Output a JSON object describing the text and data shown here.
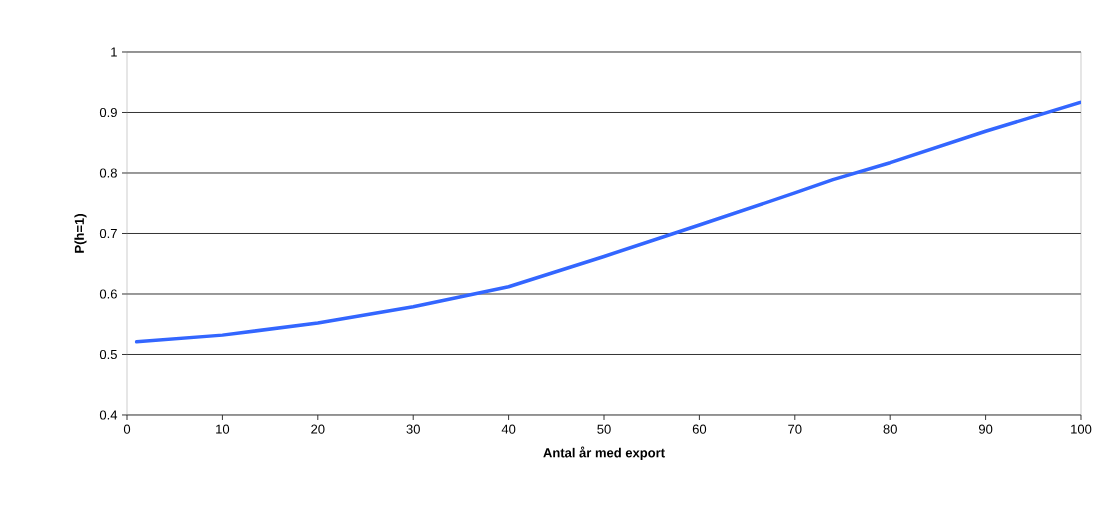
{
  "chart_data": {
    "type": "line",
    "xlabel": "Antal år med export",
    "ylabel": "P(h=1)",
    "x": [
      1,
      10,
      20,
      30,
      40,
      50,
      60,
      70,
      74,
      80,
      90,
      100
    ],
    "series": [
      {
        "color": "#3366ff",
        "values": [
          0.521,
          0.532,
          0.552,
          0.579,
          0.612,
          0.662,
          0.714,
          0.767,
          0.789,
          0.817,
          0.869,
          0.917
        ]
      }
    ],
    "xlim": [
      0,
      100
    ],
    "xticks": [
      0,
      10,
      20,
      30,
      40,
      50,
      60,
      70,
      80,
      90,
      100
    ],
    "ylim": [
      0.4,
      1
    ],
    "yticks": [
      0.4,
      0.5,
      0.6,
      0.7,
      0.8,
      0.9,
      1
    ],
    "grid": "y",
    "marker": "none",
    "line_style": "solid"
  }
}
